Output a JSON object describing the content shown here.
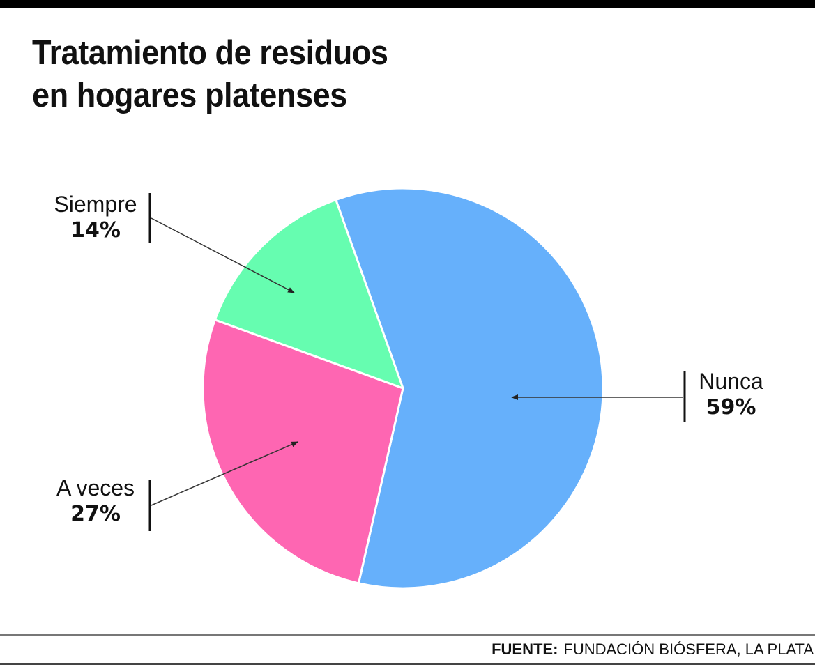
{
  "header": {
    "title_line1": "Tratamiento de residuos",
    "title_line2": "en hogares platenses"
  },
  "footer": {
    "source_label": "FUENTE:",
    "source_value": "FUNDACIÓN BIÓSFERA, LA PLATA"
  },
  "labels": {
    "siempre": {
      "name": "Siempre",
      "pct": "14%"
    },
    "a_veces": {
      "name": "A veces",
      "pct": "27%"
    },
    "nunca": {
      "name": "Nunca",
      "pct": "59%"
    }
  },
  "colors": {
    "nunca": "#66b0fb",
    "a_veces": "#fe66b2",
    "siempre": "#66fdb0"
  },
  "chart_data": {
    "type": "pie",
    "title": "Tratamiento de residuos en hogares platenses",
    "categories": [
      "Nunca",
      "A veces",
      "Siempre"
    ],
    "values": [
      59,
      27,
      14
    ],
    "unit": "%",
    "colors": [
      "#66b0fb",
      "#fe66b2",
      "#66fdb0"
    ],
    "legend": "callout labels with arrows",
    "source": "FUENTE: FUNDACIÓN BIÓSFERA, LA PLATA"
  }
}
